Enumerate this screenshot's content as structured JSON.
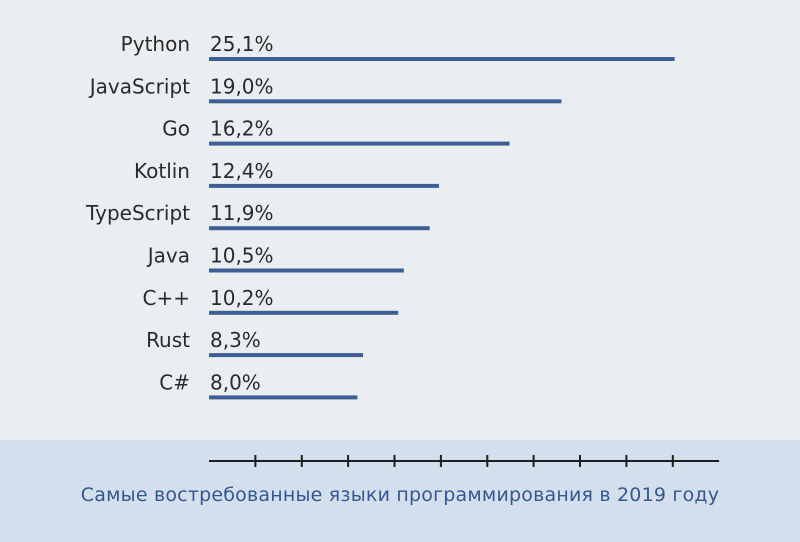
{
  "chart_data": {
    "type": "bar",
    "orientation": "horizontal",
    "categories": [
      "Python",
      "JavaScript",
      "Go",
      "Kotlin",
      "TypeScript",
      "Java",
      "C++",
      "Rust",
      "C#"
    ],
    "values": [
      25.1,
      19.0,
      16.2,
      12.4,
      11.9,
      10.5,
      10.2,
      8.3,
      8.0
    ],
    "value_labels": [
      "25,1%",
      "19,0%",
      "16,2%",
      "12,4%",
      "11,9%",
      "10,5%",
      "10,2%",
      "8,3%",
      "8,0%"
    ],
    "unit": "%",
    "xlim": [
      0,
      27.5
    ],
    "x_ticks": [
      2.5,
      5,
      7.5,
      10,
      12.5,
      15,
      17.5,
      20,
      22.5,
      25
    ],
    "grid": false,
    "legend": "none",
    "caption": "Самые востребованные языки программирования в 2019 году",
    "colors": {
      "bar": "#3e5f96",
      "text": "#2a2a2a",
      "axis": "#1e1e1e",
      "caption": "#36578f",
      "background": "#ebeef0",
      "footer": "#d3dfec"
    }
  }
}
